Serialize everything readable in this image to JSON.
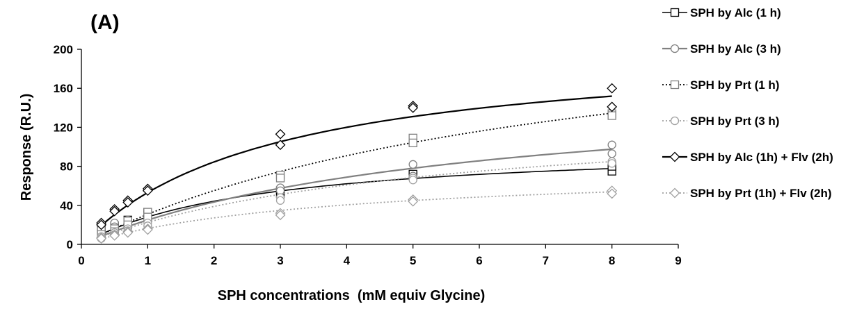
{
  "chart_data": {
    "type": "scatter",
    "panel_label": "(A)",
    "xlabel": "SPH concentrations  (mM equiv Glycine)",
    "ylabel": "Response (R.U.)",
    "xlim": [
      0,
      9
    ],
    "ylim": [
      0,
      200
    ],
    "x_ticks": [
      0,
      1,
      2,
      3,
      4,
      5,
      6,
      7,
      8,
      9
    ],
    "y_ticks": [
      0,
      40,
      80,
      120,
      160,
      200
    ],
    "grid": false,
    "legend_position": "right",
    "series": [
      {
        "name": "SPH by Alc (1 h)",
        "marker": "square",
        "color": "#000000",
        "line_style": "solid",
        "line_width": 1.6,
        "points": [
          [
            0.3,
            12
          ],
          [
            0.3,
            15
          ],
          [
            0.5,
            16
          ],
          [
            0.5,
            19
          ],
          [
            0.7,
            22
          ],
          [
            0.7,
            25
          ],
          [
            1,
            30
          ],
          [
            1,
            33
          ],
          [
            3,
            52
          ],
          [
            3,
            55
          ],
          [
            5,
            70
          ],
          [
            5,
            72
          ],
          [
            8,
            75
          ],
          [
            8,
            80
          ]
        ],
        "fit": {
          "vmax": 104,
          "km": 2.7
        }
      },
      {
        "name": "SPH by Alc (3 h)",
        "marker": "circle",
        "color": "#808080",
        "line_style": "solid",
        "line_width": 2.2,
        "points": [
          [
            0.3,
            15
          ],
          [
            0.3,
            13
          ],
          [
            0.5,
            22
          ],
          [
            0.5,
            18
          ],
          [
            0.7,
            25
          ],
          [
            0.7,
            22
          ],
          [
            1,
            32
          ],
          [
            1,
            28
          ],
          [
            3,
            58
          ],
          [
            3,
            55
          ],
          [
            5,
            82
          ],
          [
            5,
            70
          ],
          [
            8,
            102
          ],
          [
            8,
            93
          ]
        ],
        "fit": {
          "vmax": 167,
          "km": 5.7
        }
      },
      {
        "name": "SPH by Prt (1 h)",
        "marker": "square",
        "color": "#808080",
        "line_style": "dotted",
        "line_width": 1.8,
        "points": [
          [
            0.3,
            14
          ],
          [
            0.3,
            10
          ],
          [
            0.5,
            16
          ],
          [
            0.5,
            13
          ],
          [
            0.7,
            24
          ],
          [
            0.7,
            20
          ],
          [
            1,
            33
          ],
          [
            1,
            28
          ],
          [
            3,
            71
          ],
          [
            3,
            68
          ],
          [
            5,
            109
          ],
          [
            5,
            104
          ],
          [
            8,
            134
          ],
          [
            8,
            132
          ]
        ],
        "line_color": "#000000",
        "fit": {
          "vmax": 259,
          "km": 7.4
        }
      },
      {
        "name": "SPH by Prt (3 h)",
        "marker": "circle",
        "color": "#a0a0a0",
        "line_style": "dotted",
        "line_width": 1.8,
        "points": [
          [
            0.3,
            8
          ],
          [
            0.3,
            6
          ],
          [
            0.5,
            12
          ],
          [
            0.5,
            10
          ],
          [
            0.7,
            16
          ],
          [
            0.7,
            14
          ],
          [
            1,
            22
          ],
          [
            1,
            19
          ],
          [
            3,
            48
          ],
          [
            3,
            45
          ],
          [
            5,
            68
          ],
          [
            5,
            66
          ],
          [
            8,
            85
          ],
          [
            8,
            83
          ]
        ],
        "fit": {
          "vmax": 140,
          "km": 5.2
        }
      },
      {
        "name": "SPH by Alc (1h) + Flv (2h)",
        "marker": "diamond",
        "color": "#000000",
        "line_style": "solid",
        "line_width": 2.2,
        "points": [
          [
            0.3,
            22
          ],
          [
            0.3,
            20
          ],
          [
            0.5,
            36
          ],
          [
            0.5,
            34
          ],
          [
            0.7,
            45
          ],
          [
            0.7,
            43
          ],
          [
            1,
            57
          ],
          [
            1,
            55
          ],
          [
            3,
            113
          ],
          [
            3,
            102
          ],
          [
            5,
            142
          ],
          [
            5,
            140
          ],
          [
            8,
            160
          ],
          [
            8,
            141
          ]
        ],
        "fit": {
          "vmax": 207,
          "km": 2.9
        }
      },
      {
        "name": "SPH by Prt (1h) + Flv (2h)",
        "marker": "diamond",
        "color": "#a0a0a0",
        "line_style": "dotted",
        "line_width": 1.8,
        "points": [
          [
            0.3,
            7
          ],
          [
            0.3,
            6
          ],
          [
            0.5,
            10
          ],
          [
            0.5,
            9
          ],
          [
            0.7,
            13
          ],
          [
            0.7,
            12
          ],
          [
            1,
            16
          ],
          [
            1,
            15
          ],
          [
            3,
            32
          ],
          [
            3,
            30
          ],
          [
            5,
            46
          ],
          [
            5,
            44
          ],
          [
            8,
            55
          ],
          [
            8,
            52
          ]
        ],
        "fit": {
          "vmax": 80,
          "km": 3.9
        }
      }
    ]
  }
}
